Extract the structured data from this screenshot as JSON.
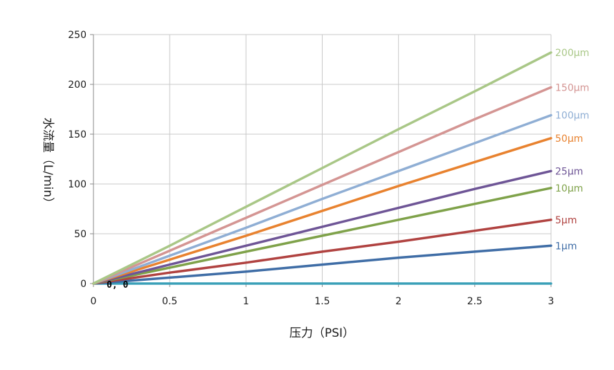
{
  "chart_data": {
    "type": "line",
    "title": "",
    "xlabel": "压力（PSI）",
    "ylabel": "水流量（L/min）",
    "xlim": [
      0,
      3
    ],
    "ylim": [
      0,
      250
    ],
    "x_ticks": [
      "0",
      "0.5",
      "1",
      "1.5",
      "2",
      "2.5",
      "3"
    ],
    "y_ticks": [
      "0",
      "50",
      "100",
      "150",
      "200",
      "250"
    ],
    "grid": true,
    "origin_annotation": "0, 0",
    "series": [
      {
        "name": "200μm",
        "color": "#a9c787",
        "points": [
          [
            0,
            0
          ],
          [
            0.5,
            38
          ],
          [
            1,
            77
          ],
          [
            1.5,
            116
          ],
          [
            2,
            155
          ],
          [
            2.5,
            193
          ],
          [
            3,
            232
          ]
        ]
      },
      {
        "name": "150μm",
        "color": "#d49593",
        "points": [
          [
            0,
            0
          ],
          [
            0.5,
            33
          ],
          [
            1,
            66
          ],
          [
            1.5,
            99
          ],
          [
            2,
            132
          ],
          [
            2.5,
            165
          ],
          [
            3,
            197
          ]
        ]
      },
      {
        "name": "100μm",
        "color": "#8faed4",
        "points": [
          [
            0,
            0
          ],
          [
            0.5,
            28
          ],
          [
            1,
            56
          ],
          [
            1.5,
            85
          ],
          [
            2,
            113
          ],
          [
            2.5,
            141
          ],
          [
            3,
            169
          ]
        ]
      },
      {
        "name": "50μm",
        "color": "#e8822f",
        "points": [
          [
            0,
            0
          ],
          [
            0.5,
            24
          ],
          [
            1,
            48
          ],
          [
            1.5,
            73
          ],
          [
            2,
            98
          ],
          [
            2.5,
            122
          ],
          [
            3,
            146
          ]
        ]
      },
      {
        "name": "25μm",
        "color": "#6e5596",
        "points": [
          [
            0,
            0
          ],
          [
            0.5,
            19
          ],
          [
            1,
            38
          ],
          [
            1.5,
            57
          ],
          [
            2,
            76
          ],
          [
            2.5,
            95
          ],
          [
            3,
            113
          ]
        ]
      },
      {
        "name": "10μm",
        "color": "#7fa24a",
        "points": [
          [
            0,
            0
          ],
          [
            0.5,
            16
          ],
          [
            1,
            32
          ],
          [
            1.5,
            48
          ],
          [
            2,
            64
          ],
          [
            2.5,
            80
          ],
          [
            3,
            96
          ]
        ]
      },
      {
        "name": "5μm",
        "color": "#b04240",
        "points": [
          [
            0,
            0
          ],
          [
            0.5,
            11
          ],
          [
            1,
            21
          ],
          [
            1.5,
            32
          ],
          [
            2,
            42
          ],
          [
            2.5,
            53
          ],
          [
            3,
            64
          ]
        ]
      },
      {
        "name": "1μm",
        "color": "#3f6da6",
        "points": [
          [
            0,
            0
          ],
          [
            0.5,
            6
          ],
          [
            1,
            12
          ],
          [
            1.5,
            19
          ],
          [
            2,
            26
          ],
          [
            2.5,
            32
          ],
          [
            3,
            38
          ]
        ]
      },
      {
        "name": "",
        "color": "#3aa0b8",
        "points": [
          [
            0,
            0
          ],
          [
            3,
            0
          ]
        ]
      }
    ]
  }
}
